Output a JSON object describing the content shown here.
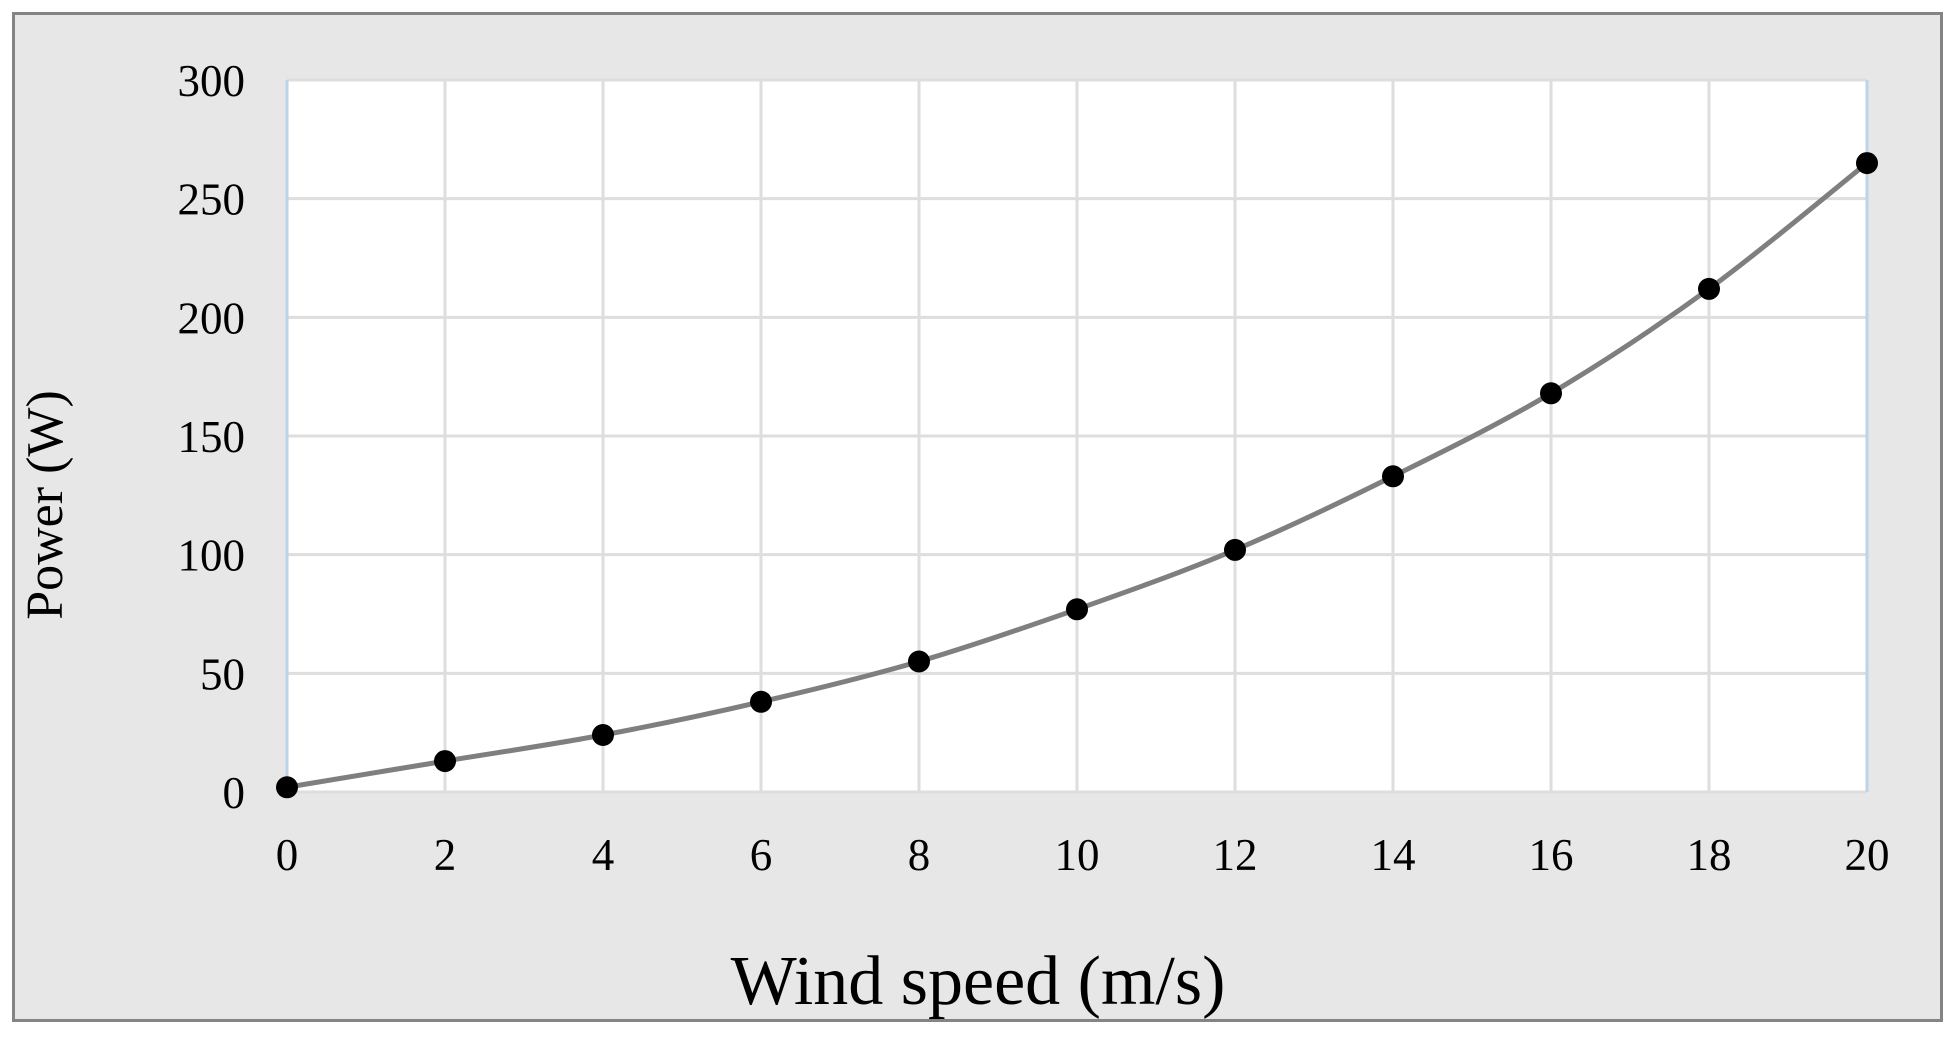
{
  "chart_data": {
    "type": "line",
    "title": "",
    "xlabel": "Wind speed (m/s)",
    "ylabel": "Power (W)",
    "x": [
      0,
      2,
      4,
      6,
      8,
      10,
      12,
      14,
      16,
      18,
      20
    ],
    "series": [
      {
        "name": "Power",
        "values": [
          2,
          13,
          24,
          38,
          55,
          77,
          102,
          133,
          168,
          212,
          265
        ]
      }
    ],
    "x_ticks": [
      "0",
      "2",
      "4",
      "6",
      "8",
      "10",
      "12",
      "14",
      "16",
      "18",
      "20"
    ],
    "y_ticks": [
      "0",
      "50",
      "100",
      "150",
      "200",
      "250",
      "300"
    ],
    "y_tick_values": [
      0,
      50,
      100,
      150,
      200,
      250,
      300
    ],
    "xlim": [
      0,
      20
    ],
    "ylim": [
      0,
      300
    ],
    "grid": true,
    "legend": "none",
    "line_style": "smooth",
    "marker": "filled-circle",
    "colors": {
      "outer_margin": "#ffffff",
      "frame_border": "#848484",
      "chart_background": "#e7e7e7",
      "plot_background": "#ffffff",
      "gridline": "#dedede",
      "plot_edge_vertical": "#bdd3ea",
      "line": "#7f7f7f",
      "marker": "#000000",
      "text": "#000000"
    }
  }
}
